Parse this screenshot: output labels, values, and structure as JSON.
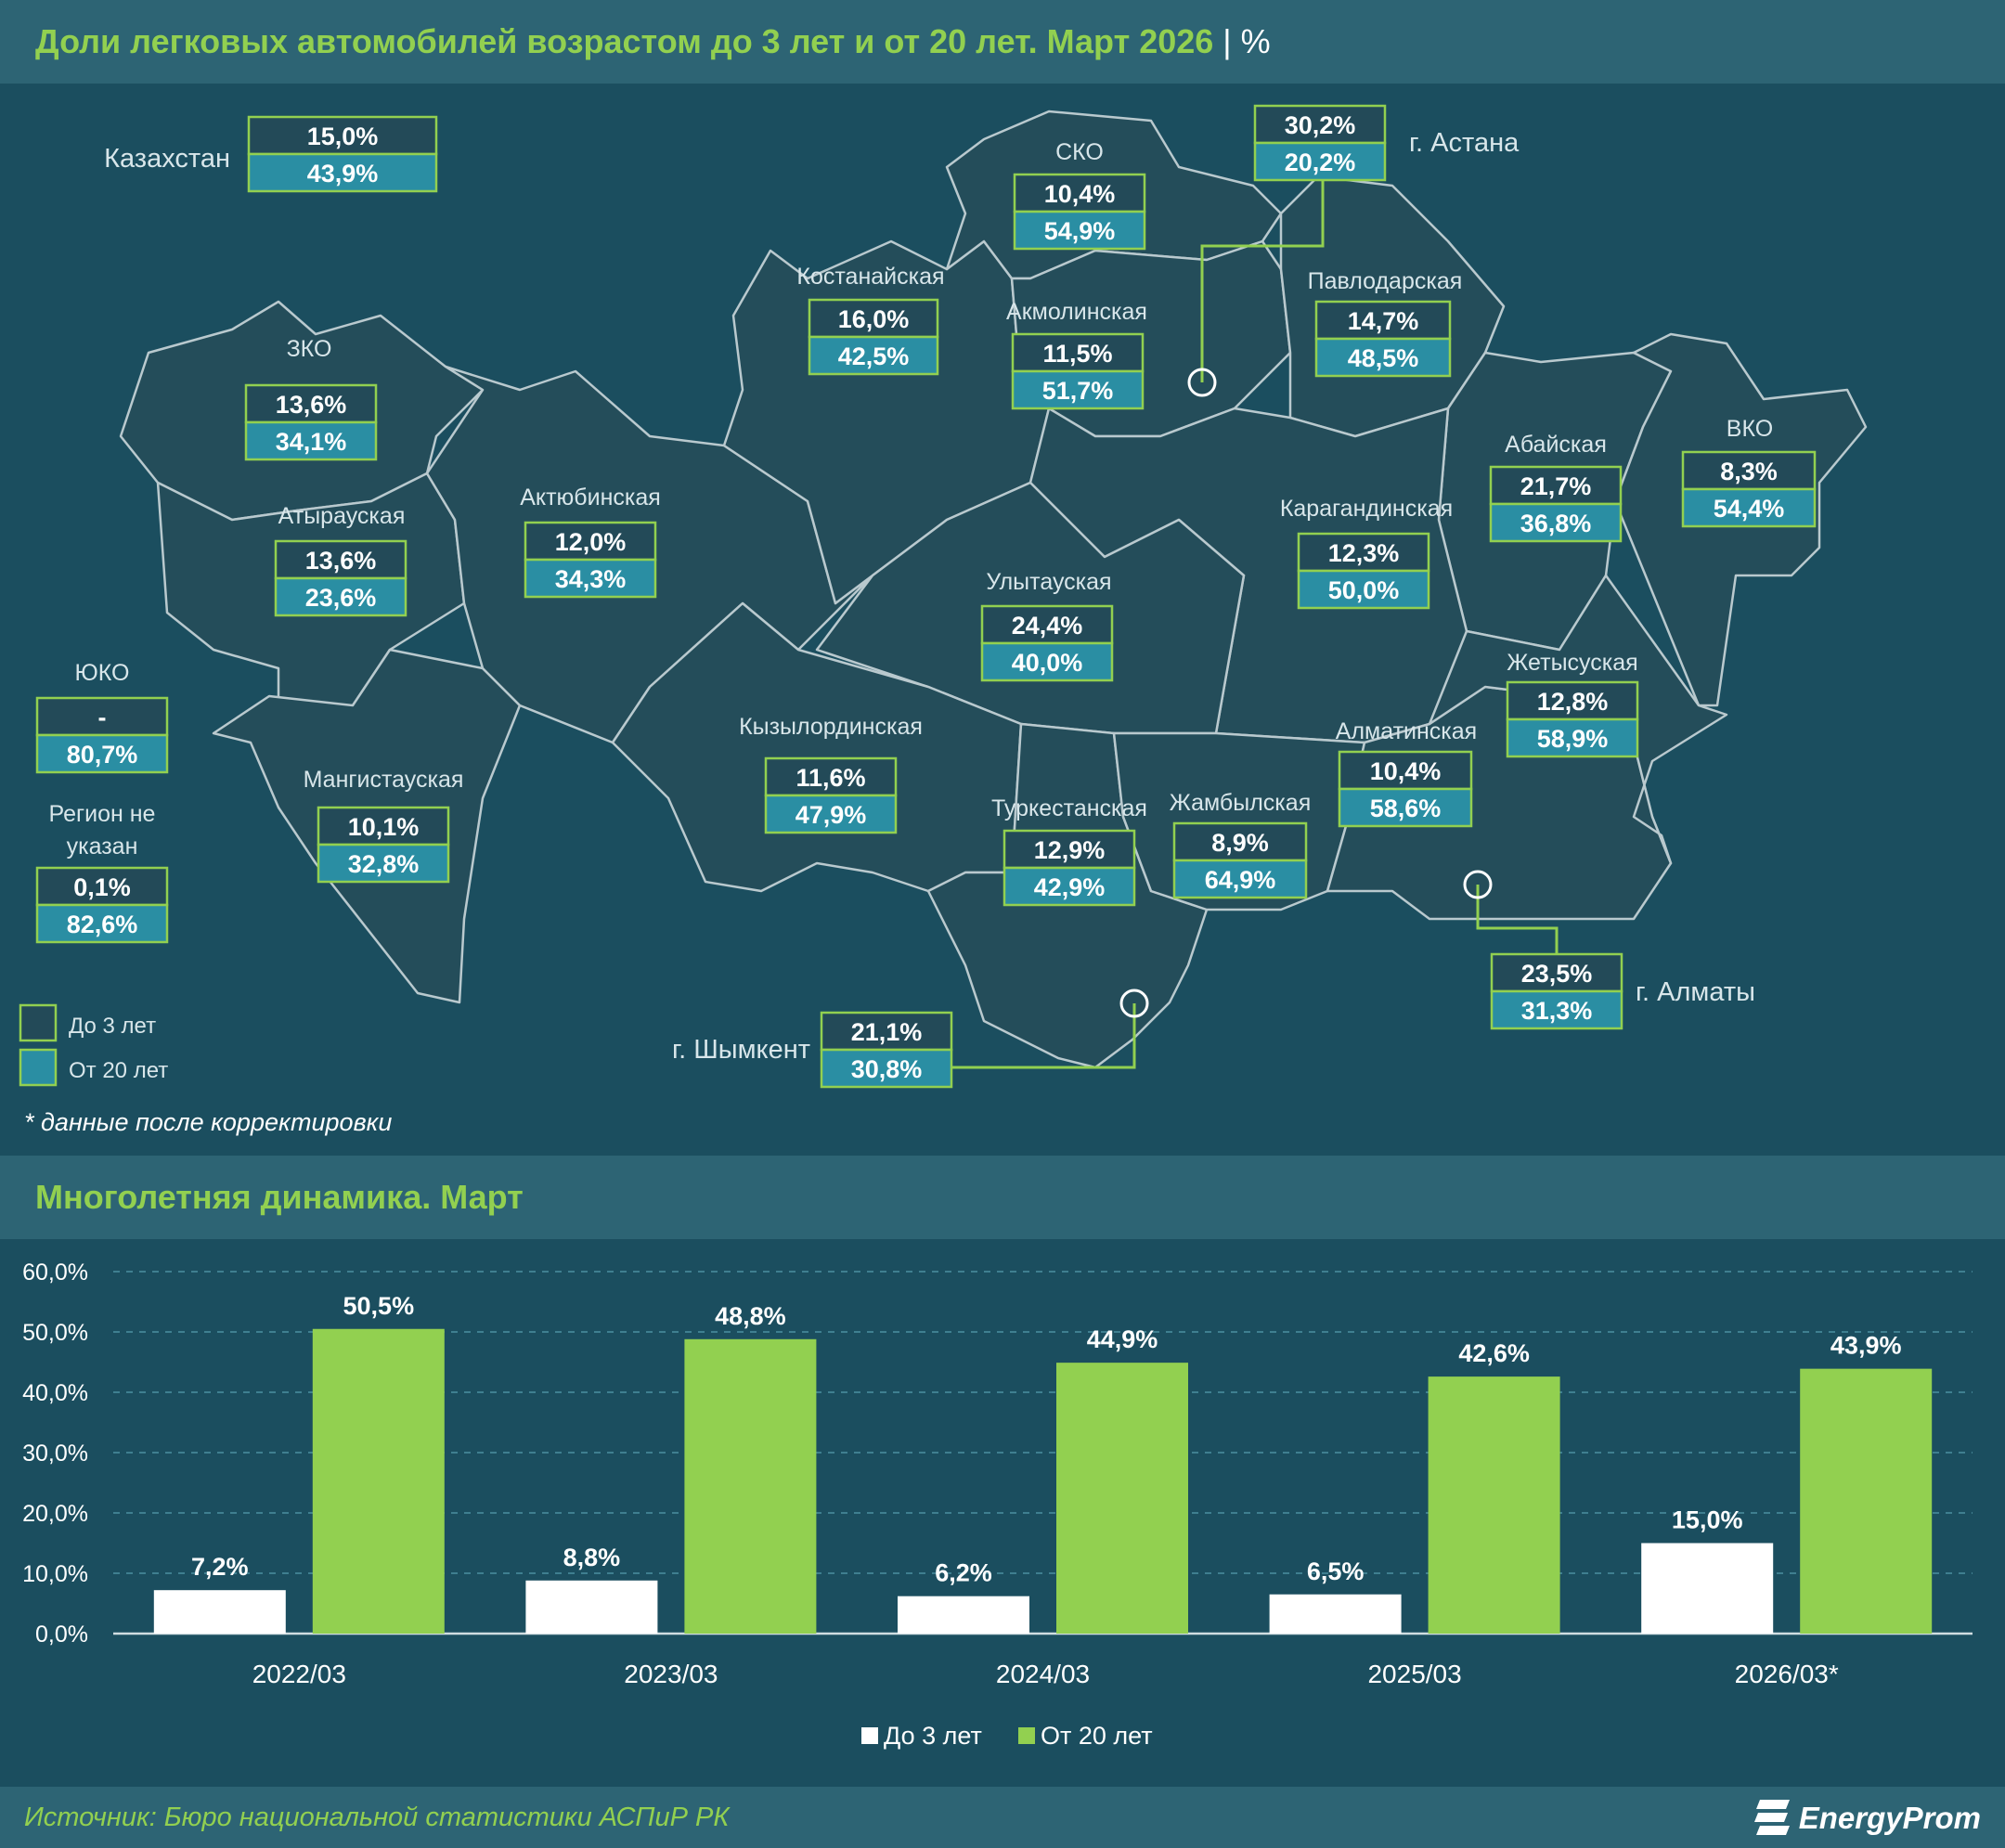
{
  "header": {
    "title": "Доли легковых автомобилей возрастом до 3 лет и от 20 лет. Март 2026",
    "unit": "%"
  },
  "kazakhstan": {
    "label": "Казахстан",
    "under3": "15,0%",
    "over20": "43,9%"
  },
  "regions": [
    {
      "name": "ЗКО",
      "under3": "13,6%",
      "over20": "34,1%"
    },
    {
      "name": "Атырауская",
      "under3": "13,6%",
      "over20": "23,6%"
    },
    {
      "name": "Мангистауская",
      "under3": "10,1%",
      "over20": "32,8%"
    },
    {
      "name": "Актюбинская",
      "under3": "12,0%",
      "over20": "34,3%"
    },
    {
      "name": "Костанайская",
      "under3": "16,0%",
      "over20": "42,5%"
    },
    {
      "name": "СКО",
      "under3": "10,4%",
      "over20": "54,9%"
    },
    {
      "name": "Акмолинская",
      "under3": "11,5%",
      "over20": "51,7%"
    },
    {
      "name": "г. Астана",
      "under3": "30,2%",
      "over20": "20,2%"
    },
    {
      "name": "Павлодарская",
      "under3": "14,7%",
      "over20": "48,5%"
    },
    {
      "name": "Абайская",
      "under3": "21,7%",
      "over20": "36,8%"
    },
    {
      "name": "ВКО",
      "under3": "8,3%",
      "over20": "54,4%"
    },
    {
      "name": "Карагандинская",
      "under3": "12,3%",
      "over20": "50,0%"
    },
    {
      "name": "Улытауская",
      "under3": "24,4%",
      "over20": "40,0%"
    },
    {
      "name": "Кызылординская",
      "under3": "11,6%",
      "over20": "47,9%"
    },
    {
      "name": "Туркестанская",
      "under3": "12,9%",
      "over20": "42,9%"
    },
    {
      "name": "Жамбылская",
      "under3": "8,9%",
      "over20": "64,9%"
    },
    {
      "name": "Алматинская",
      "under3": "10,4%",
      "over20": "58,6%"
    },
    {
      "name": "Жетысуская",
      "under3": "12,8%",
      "over20": "58,9%"
    },
    {
      "name": "г. Алматы",
      "under3": "23,5%",
      "over20": "31,3%"
    },
    {
      "name": "г. Шымкент",
      "under3": "21,1%",
      "over20": "30,8%"
    },
    {
      "name": "ЮКО",
      "under3": "-",
      "over20": "80,7%"
    },
    {
      "name": "Регион не указан",
      "under3": "0,1%",
      "over20": "82,6%"
    }
  ],
  "map_legend": {
    "under3": "До 3 лет",
    "over20": "От 20 лет"
  },
  "map_note": "* данные после корректировки",
  "colors": {
    "background": "#1b4e5f",
    "header_bar": "#2d6474",
    "region_fill": "#244d5a",
    "region_border": "#b9c9ce",
    "box_under3": "#234a58",
    "box_over20": "#2a8ea3",
    "box_border": "#92d050",
    "accent_green": "#92d050",
    "bar_under3": "#ffffff",
    "bar_over20": "#92d050"
  },
  "chart_header": {
    "title": "Многолетняя динамика. Март"
  },
  "chart_data": {
    "type": "bar",
    "categories": [
      "2022/03",
      "2023/03",
      "2024/03",
      "2025/03",
      "2026/03*"
    ],
    "series": [
      {
        "name": "До 3 лет",
        "values": [
          7.2,
          8.8,
          6.2,
          6.5,
          15.0
        ],
        "labels": [
          "7,2%",
          "8,8%",
          "6,2%",
          "6,5%",
          "15,0%"
        ]
      },
      {
        "name": "От 20 лет",
        "values": [
          50.5,
          48.8,
          44.9,
          42.6,
          43.9
        ],
        "labels": [
          "50,5%",
          "48,8%",
          "44,9%",
          "42,6%",
          "43,9%"
        ]
      }
    ],
    "yticks": [
      "0,0%",
      "10,0%",
      "20,0%",
      "30,0%",
      "40,0%",
      "50,0%",
      "60,0%"
    ],
    "ylim": [
      0,
      60
    ],
    "grid": true,
    "legend": "bottom"
  },
  "footer": {
    "source": "Источник: Бюро национальной статистики АСПиР РК",
    "logo": "EnergyProm"
  }
}
